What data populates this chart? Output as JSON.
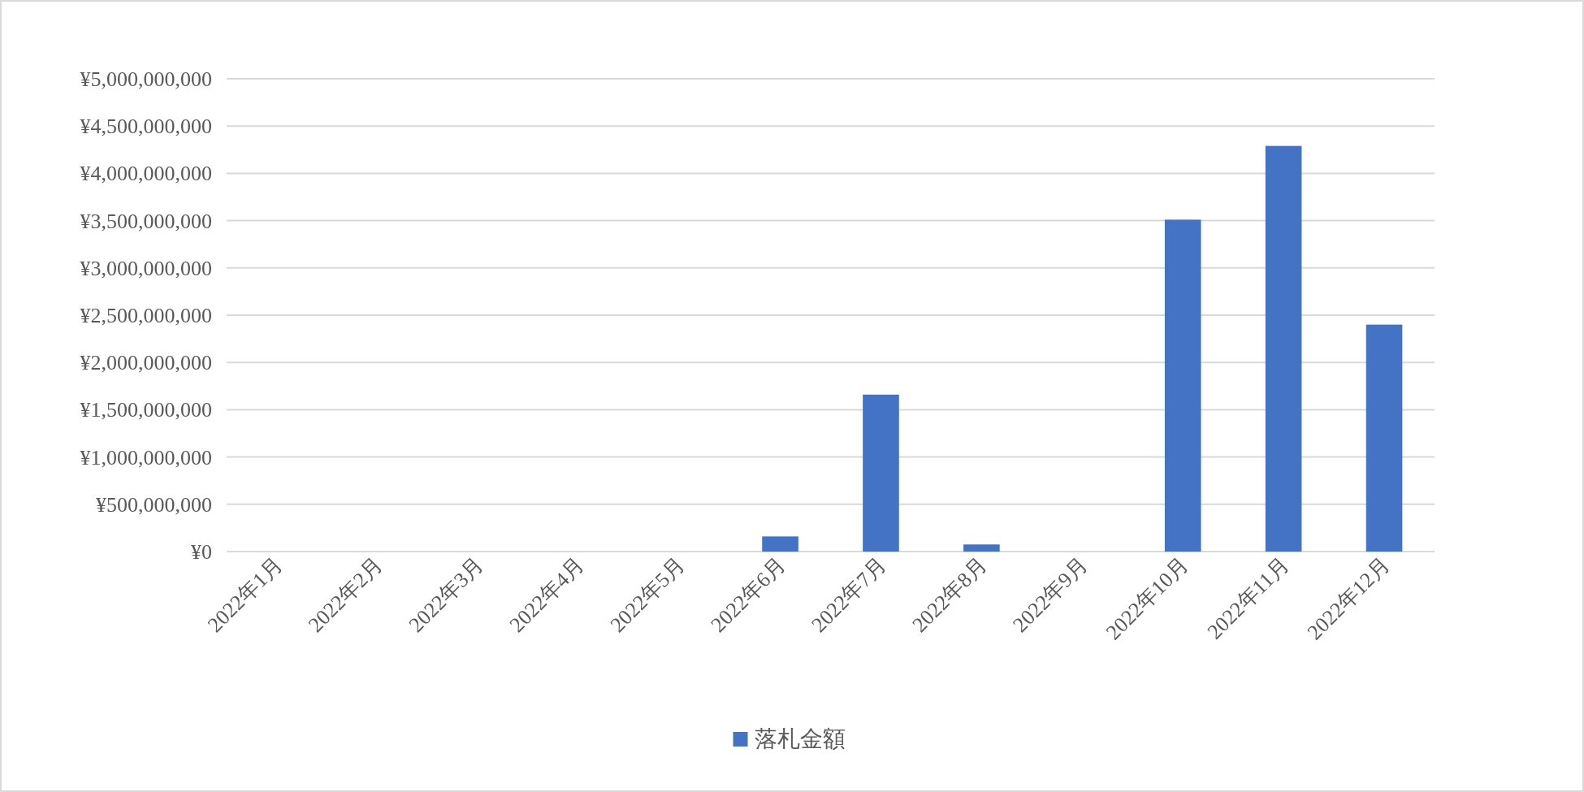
{
  "chart_data": {
    "type": "bar",
    "categories": [
      "2022年1月",
      "2022年2月",
      "2022年3月",
      "2022年4月",
      "2022年5月",
      "2022年6月",
      "2022年7月",
      "2022年8月",
      "2022年9月",
      "2022年10月",
      "2022年11月",
      "2022年12月"
    ],
    "series": [
      {
        "name": "落札金額",
        "color": "#4472c4",
        "values": [
          0,
          0,
          0,
          0,
          0,
          160000000,
          1660000000,
          75000000,
          0,
          3510000000,
          4290000000,
          2400000000
        ]
      }
    ],
    "ylim": [
      0,
      5000000000
    ],
    "yticks": [
      {
        "value": 0,
        "label": "¥0"
      },
      {
        "value": 500000000,
        "label": "¥500,000,000"
      },
      {
        "value": 1000000000,
        "label": "¥1,000,000,000"
      },
      {
        "value": 1500000000,
        "label": "¥1,500,000,000"
      },
      {
        "value": 2000000000,
        "label": "¥2,000,000,000"
      },
      {
        "value": 2500000000,
        "label": "¥2,500,000,000"
      },
      {
        "value": 3000000000,
        "label": "¥3,000,000,000"
      },
      {
        "value": 3500000000,
        "label": "¥3,500,000,000"
      },
      {
        "value": 4000000000,
        "label": "¥4,000,000,000"
      },
      {
        "value": 4500000000,
        "label": "¥4,500,000,000"
      },
      {
        "value": 5000000000,
        "label": "¥5,000,000,000"
      }
    ],
    "grid": "y",
    "legend": "bottom"
  }
}
